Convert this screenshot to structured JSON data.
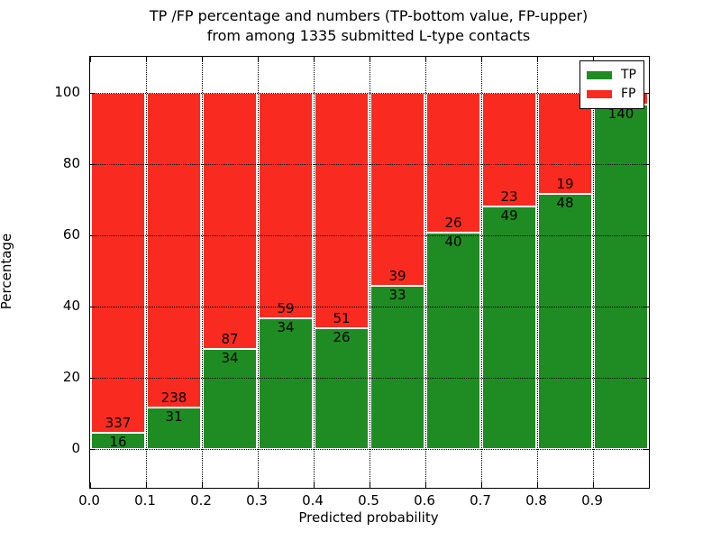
{
  "title": {
    "line1": "TP /FP percentage and numbers (TP-bottom value, FP-upper)",
    "line2": "from among 1335 submitted L-type contacts"
  },
  "chart_data": {
    "type": "bar",
    "stacked": true,
    "title": "TP /FP percentage and numbers (TP-bottom value, FP-upper) from among 1335 submitted L-type contacts",
    "xlabel": "Predicted probability",
    "ylabel": "Percentage",
    "xlim": [
      0.0,
      1.0
    ],
    "ylim": [
      -11,
      110
    ],
    "grid": true,
    "legend_position": "upper right",
    "xticks": [
      "0.0",
      "0.1",
      "0.2",
      "0.3",
      "0.4",
      "0.5",
      "0.6",
      "0.7",
      "0.8",
      "0.9"
    ],
    "yticks": [
      0,
      20,
      40,
      60,
      80,
      100
    ],
    "total_contacts": 1335,
    "bin_width": 0.1,
    "series": [
      {
        "name": "TP",
        "color": "#1f8c23"
      },
      {
        "name": "FP",
        "color": "#f92b20"
      }
    ],
    "bins": [
      {
        "x0": 0.0,
        "x1": 0.1,
        "tp": 16,
        "fp": 337,
        "tp_pct": 4.5
      },
      {
        "x0": 0.1,
        "x1": 0.2,
        "tp": 31,
        "fp": 238,
        "tp_pct": 11.5
      },
      {
        "x0": 0.2,
        "x1": 0.3,
        "tp": 34,
        "fp": 87,
        "tp_pct": 28.1
      },
      {
        "x0": 0.3,
        "x1": 0.4,
        "tp": 34,
        "fp": 59,
        "tp_pct": 36.6
      },
      {
        "x0": 0.4,
        "x1": 0.5,
        "tp": 26,
        "fp": 51,
        "tp_pct": 33.8
      },
      {
        "x0": 0.5,
        "x1": 0.6,
        "tp": 33,
        "fp": 39,
        "tp_pct": 45.8
      },
      {
        "x0": 0.6,
        "x1": 0.7,
        "tp": 40,
        "fp": 26,
        "tp_pct": 60.6
      },
      {
        "x0": 0.7,
        "x1": 0.8,
        "tp": 49,
        "fp": 23,
        "tp_pct": 68.1
      },
      {
        "x0": 0.8,
        "x1": 0.9,
        "tp": 48,
        "fp": 19,
        "tp_pct": 71.6
      },
      {
        "x0": 0.9,
        "x1": 1.0,
        "tp": 140,
        "fp": null,
        "tp_pct": 96.5
      }
    ]
  }
}
